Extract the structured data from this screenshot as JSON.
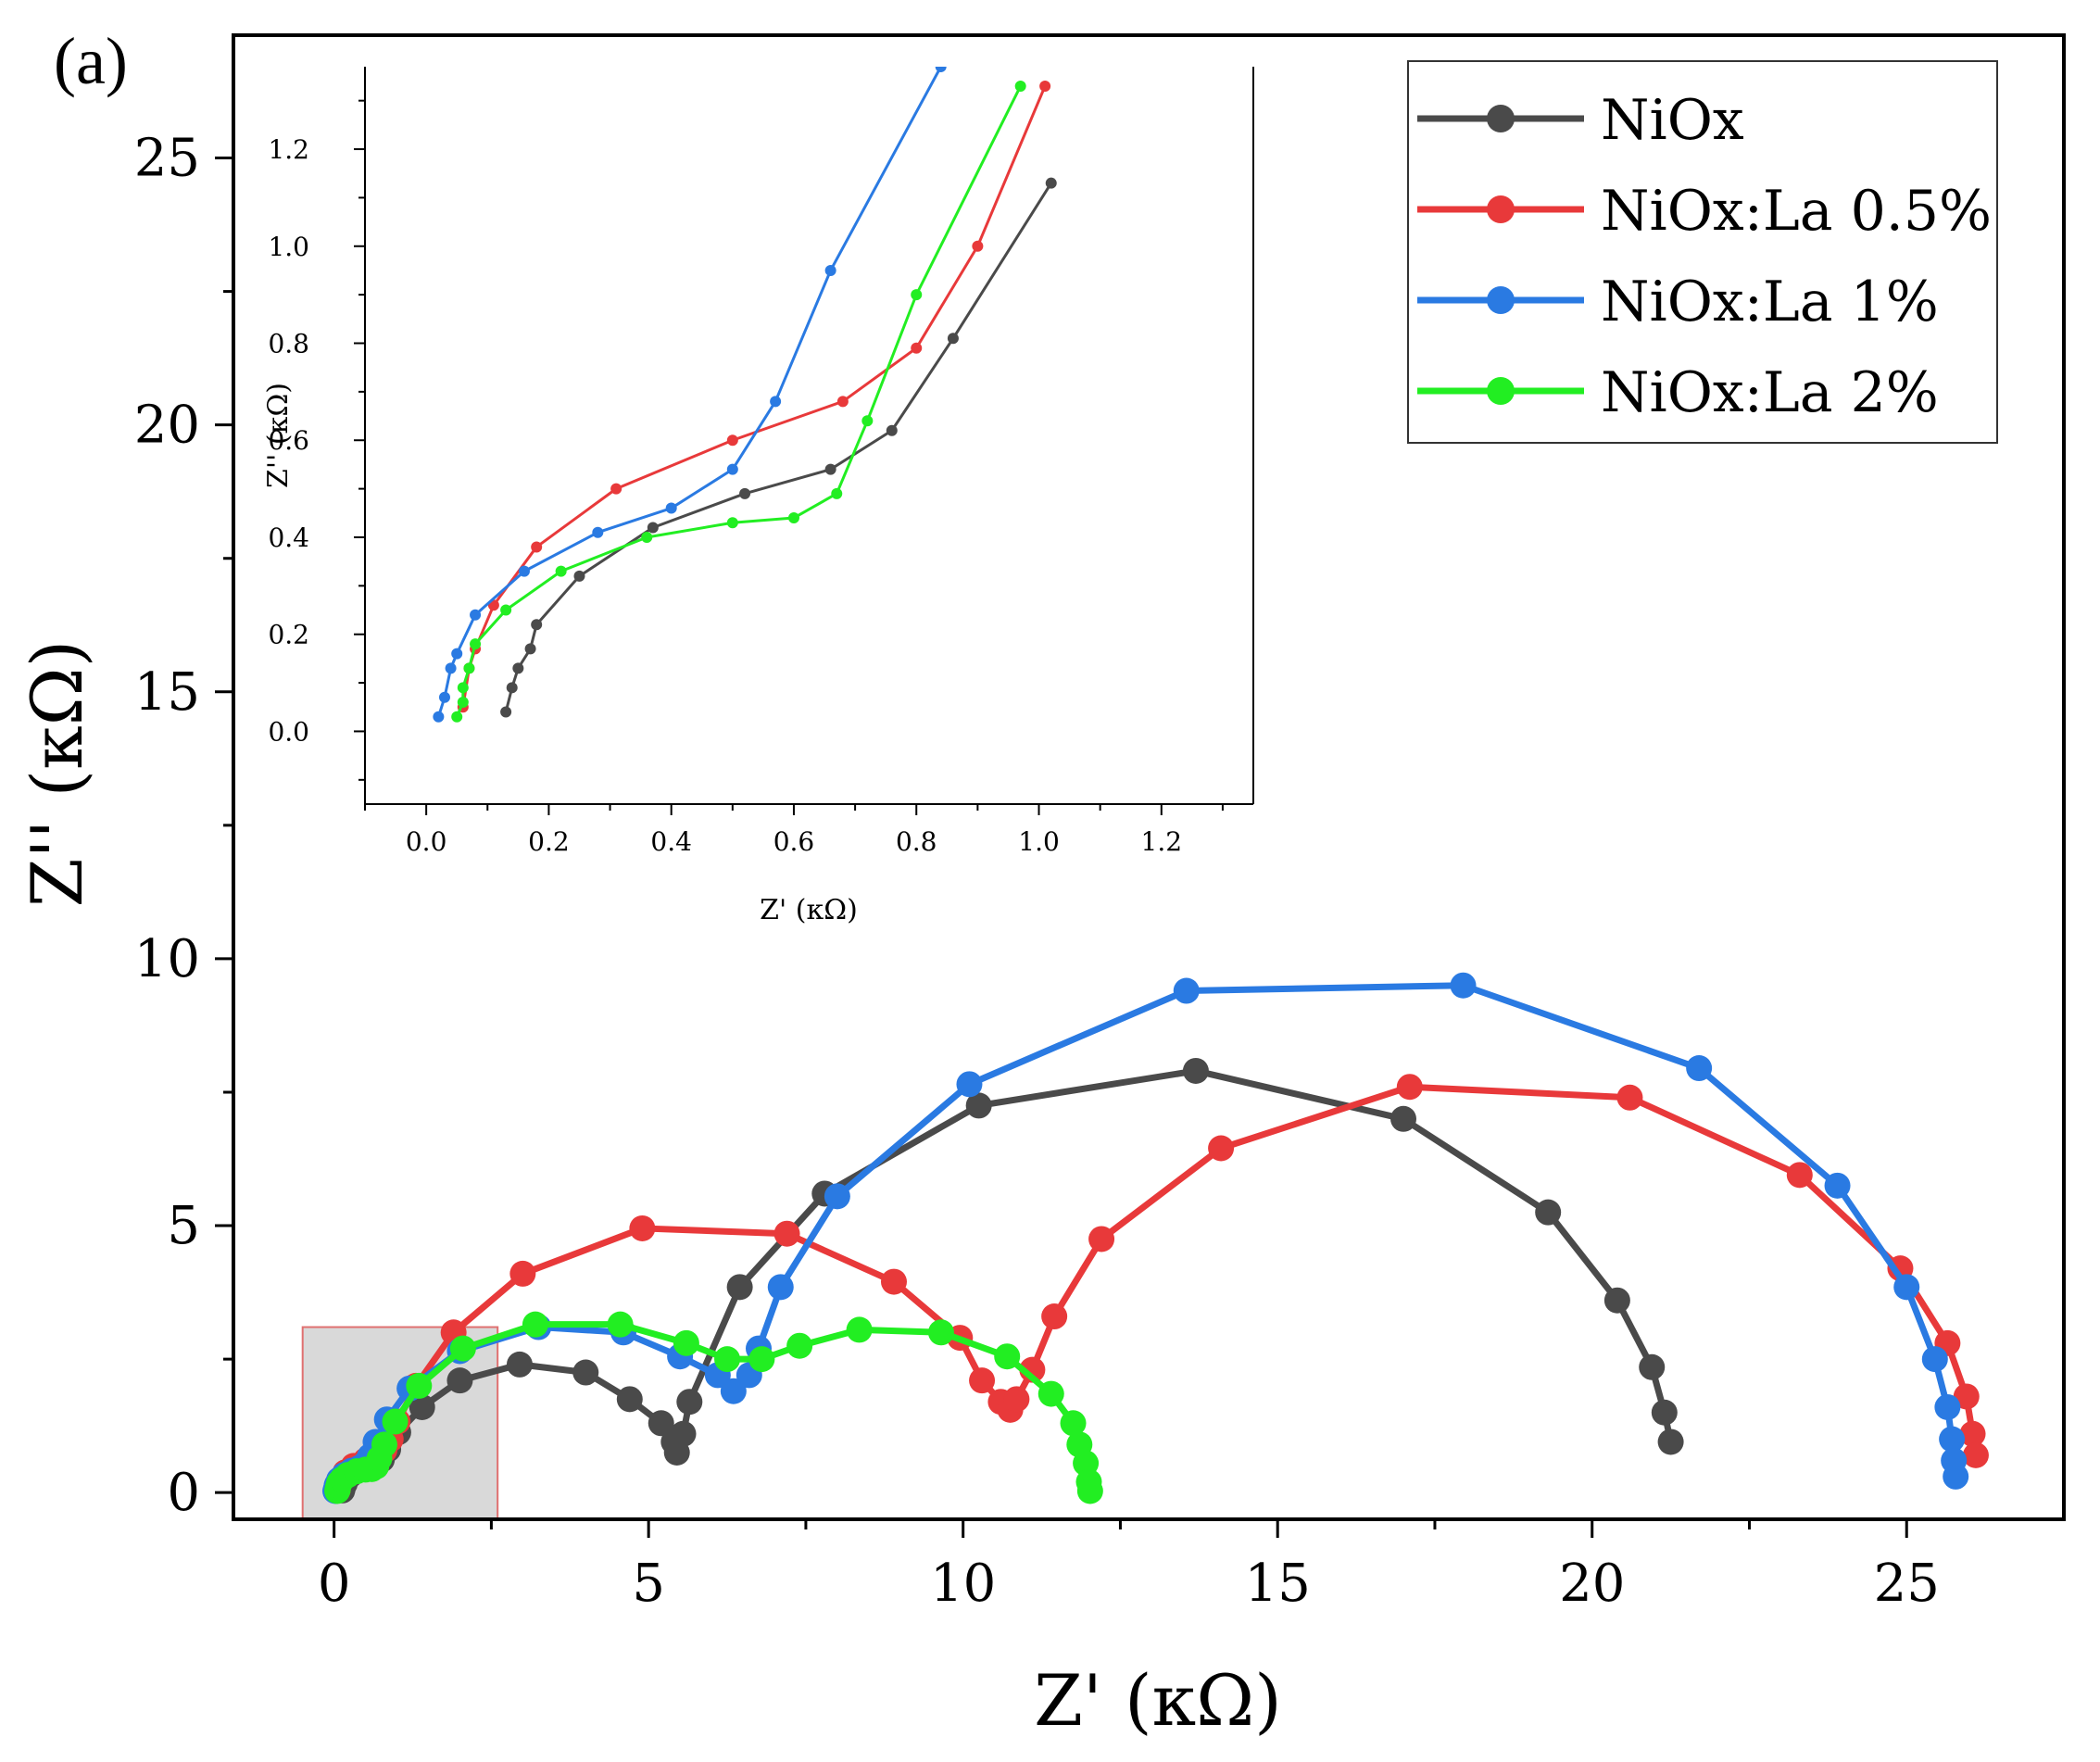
{
  "panel_label": "(a)",
  "chart_data": [
    {
      "id": "main",
      "type": "line",
      "xlabel": "Z' (κΩ)",
      "ylabel": "Z'' (κΩ)",
      "xlim": [
        -1.6,
        27.5
      ],
      "ylim": [
        -0.5,
        27.3
      ],
      "xticks": [
        0,
        5,
        10,
        15,
        20,
        25
      ],
      "yticks": [
        0,
        5,
        10,
        15,
        20,
        25
      ],
      "xtick_labels": [
        "0",
        "5",
        "10",
        "15",
        "20",
        "25"
      ],
      "ytick_labels": [
        "0",
        "5",
        "10",
        "15",
        "20",
        "25"
      ],
      "legend_position": "top-right",
      "zoom_region": {
        "x": [
          -0.5,
          2.6
        ],
        "y": [
          -0.5,
          3.1
        ]
      },
      "series": [
        {
          "name": "NiOx",
          "color": "#4a4a4a",
          "points": [
            [
              0.13,
              0.04
            ],
            [
              0.14,
              0.09
            ],
            [
              0.15,
              0.13
            ],
            [
              0.17,
              0.17
            ],
            [
              0.18,
              0.22
            ],
            [
              0.25,
              0.32
            ],
            [
              0.37,
              0.42
            ],
            [
              0.52,
              0.49
            ],
            [
              0.66,
              0.54
            ],
            [
              0.76,
              0.62
            ],
            [
              0.86,
              0.81
            ],
            [
              1.02,
              1.13
            ],
            [
              1.4,
              1.6
            ],
            [
              2.0,
              2.1
            ],
            [
              2.95,
              2.4
            ],
            [
              4.0,
              2.25
            ],
            [
              4.7,
              1.75
            ],
            [
              5.2,
              1.3
            ],
            [
              5.4,
              0.95
            ],
            [
              5.45,
              0.75
            ],
            [
              5.55,
              1.1
            ],
            [
              5.65,
              1.7
            ],
            [
              6.45,
              3.85
            ],
            [
              7.8,
              5.6
            ],
            [
              10.25,
              7.25
            ],
            [
              13.7,
              7.9
            ],
            [
              17.0,
              7.0
            ],
            [
              19.3,
              5.25
            ],
            [
              20.4,
              3.6
            ],
            [
              20.95,
              2.35
            ],
            [
              21.15,
              1.5
            ],
            [
              21.25,
              0.95
            ]
          ]
        },
        {
          "name": "NiOx:La 0.5%",
          "color": "#e8393a",
          "points": [
            [
              0.06,
              0.05
            ],
            [
              0.07,
              0.13
            ],
            [
              0.08,
              0.17
            ],
            [
              0.11,
              0.26
            ],
            [
              0.18,
              0.38
            ],
            [
              0.31,
              0.5
            ],
            [
              0.5,
              0.6
            ],
            [
              0.68,
              0.68
            ],
            [
              0.8,
              0.79
            ],
            [
              0.9,
              1.0
            ],
            [
              1.01,
              1.33
            ],
            [
              1.3,
              2.0
            ],
            [
              1.9,
              3.0
            ],
            [
              3.0,
              4.1
            ],
            [
              4.9,
              4.95
            ],
            [
              7.2,
              4.85
            ],
            [
              8.9,
              3.95
            ],
            [
              9.95,
              2.9
            ],
            [
              10.3,
              2.1
            ],
            [
              10.6,
              1.7
            ],
            [
              10.75,
              1.55
            ],
            [
              10.85,
              1.75
            ],
            [
              11.1,
              2.3
            ],
            [
              11.45,
              3.3
            ],
            [
              12.2,
              4.75
            ],
            [
              14.1,
              6.45
            ],
            [
              17.1,
              7.6
            ],
            [
              20.6,
              7.4
            ],
            [
              23.3,
              5.95
            ],
            [
              24.9,
              4.2
            ],
            [
              25.65,
              2.8
            ],
            [
              25.95,
              1.8
            ],
            [
              26.05,
              1.1
            ],
            [
              26.1,
              0.7
            ]
          ]
        },
        {
          "name": "NiOx:La 1%",
          "color": "#2a7ae2",
          "points": [
            [
              0.02,
              0.03
            ],
            [
              0.03,
              0.07
            ],
            [
              0.04,
              0.13
            ],
            [
              0.05,
              0.16
            ],
            [
              0.08,
              0.24
            ],
            [
              0.16,
              0.33
            ],
            [
              0.28,
              0.41
            ],
            [
              0.4,
              0.46
            ],
            [
              0.5,
              0.54
            ],
            [
              0.57,
              0.68
            ],
            [
              0.66,
              0.95
            ],
            [
              0.84,
              1.37
            ],
            [
              1.2,
              1.95
            ],
            [
              2.0,
              2.65
            ],
            [
              3.25,
              3.1
            ],
            [
              4.6,
              3.0
            ],
            [
              5.5,
              2.55
            ],
            [
              6.1,
              2.2
            ],
            [
              6.35,
              1.9
            ],
            [
              6.6,
              2.2
            ],
            [
              6.75,
              2.7
            ],
            [
              7.1,
              3.85
            ],
            [
              8.0,
              5.55
            ],
            [
              10.1,
              7.65
            ],
            [
              13.55,
              9.4
            ],
            [
              17.95,
              9.5
            ],
            [
              21.7,
              7.95
            ],
            [
              23.9,
              5.75
            ],
            [
              25.0,
              3.85
            ],
            [
              25.45,
              2.5
            ],
            [
              25.65,
              1.6
            ],
            [
              25.72,
              1.0
            ],
            [
              25.75,
              0.6
            ],
            [
              25.78,
              0.3
            ]
          ]
        },
        {
          "name": "NiOx:La 2%",
          "color": "#22ee22",
          "points": [
            [
              0.05,
              0.03
            ],
            [
              0.06,
              0.06
            ],
            [
              0.06,
              0.09
            ],
            [
              0.07,
              0.13
            ],
            [
              0.08,
              0.18
            ],
            [
              0.13,
              0.25
            ],
            [
              0.22,
              0.33
            ],
            [
              0.36,
              0.4
            ],
            [
              0.5,
              0.43
            ],
            [
              0.6,
              0.44
            ],
            [
              0.67,
              0.49
            ],
            [
              0.72,
              0.64
            ],
            [
              0.8,
              0.9
            ],
            [
              0.97,
              1.33
            ],
            [
              1.35,
              2.0
            ],
            [
              2.05,
              2.7
            ],
            [
              3.2,
              3.15
            ],
            [
              4.55,
              3.15
            ],
            [
              5.6,
              2.8
            ],
            [
              6.25,
              2.5
            ],
            [
              6.8,
              2.5
            ],
            [
              7.4,
              2.75
            ],
            [
              8.35,
              3.05
            ],
            [
              9.65,
              3.0
            ],
            [
              10.7,
              2.55
            ],
            [
              11.4,
              1.85
            ],
            [
              11.75,
              1.3
            ],
            [
              11.85,
              0.9
            ],
            [
              11.95,
              0.55
            ],
            [
              12.0,
              0.2
            ],
            [
              12.02,
              0.03
            ]
          ]
        }
      ]
    },
    {
      "id": "inset",
      "type": "line",
      "xlabel": "Z' (κΩ)",
      "ylabel": "Z'' (κΩ)",
      "xlim": [
        -0.1,
        1.35
      ],
      "ylim": [
        -0.15,
        1.37
      ],
      "xticks": [
        0.0,
        0.2,
        0.4,
        0.6,
        0.8,
        1.0,
        1.2
      ],
      "yticks": [
        0.0,
        0.2,
        0.4,
        0.6,
        0.8,
        1.0,
        1.2
      ],
      "xtick_labels": [
        "0.0",
        "0.2",
        "0.4",
        "0.6",
        "0.8",
        "1.0",
        "1.2"
      ],
      "ytick_labels": [
        "0.0",
        "0.2",
        "0.4",
        "0.6",
        "0.8",
        "1.0",
        "1.2"
      ]
    }
  ]
}
